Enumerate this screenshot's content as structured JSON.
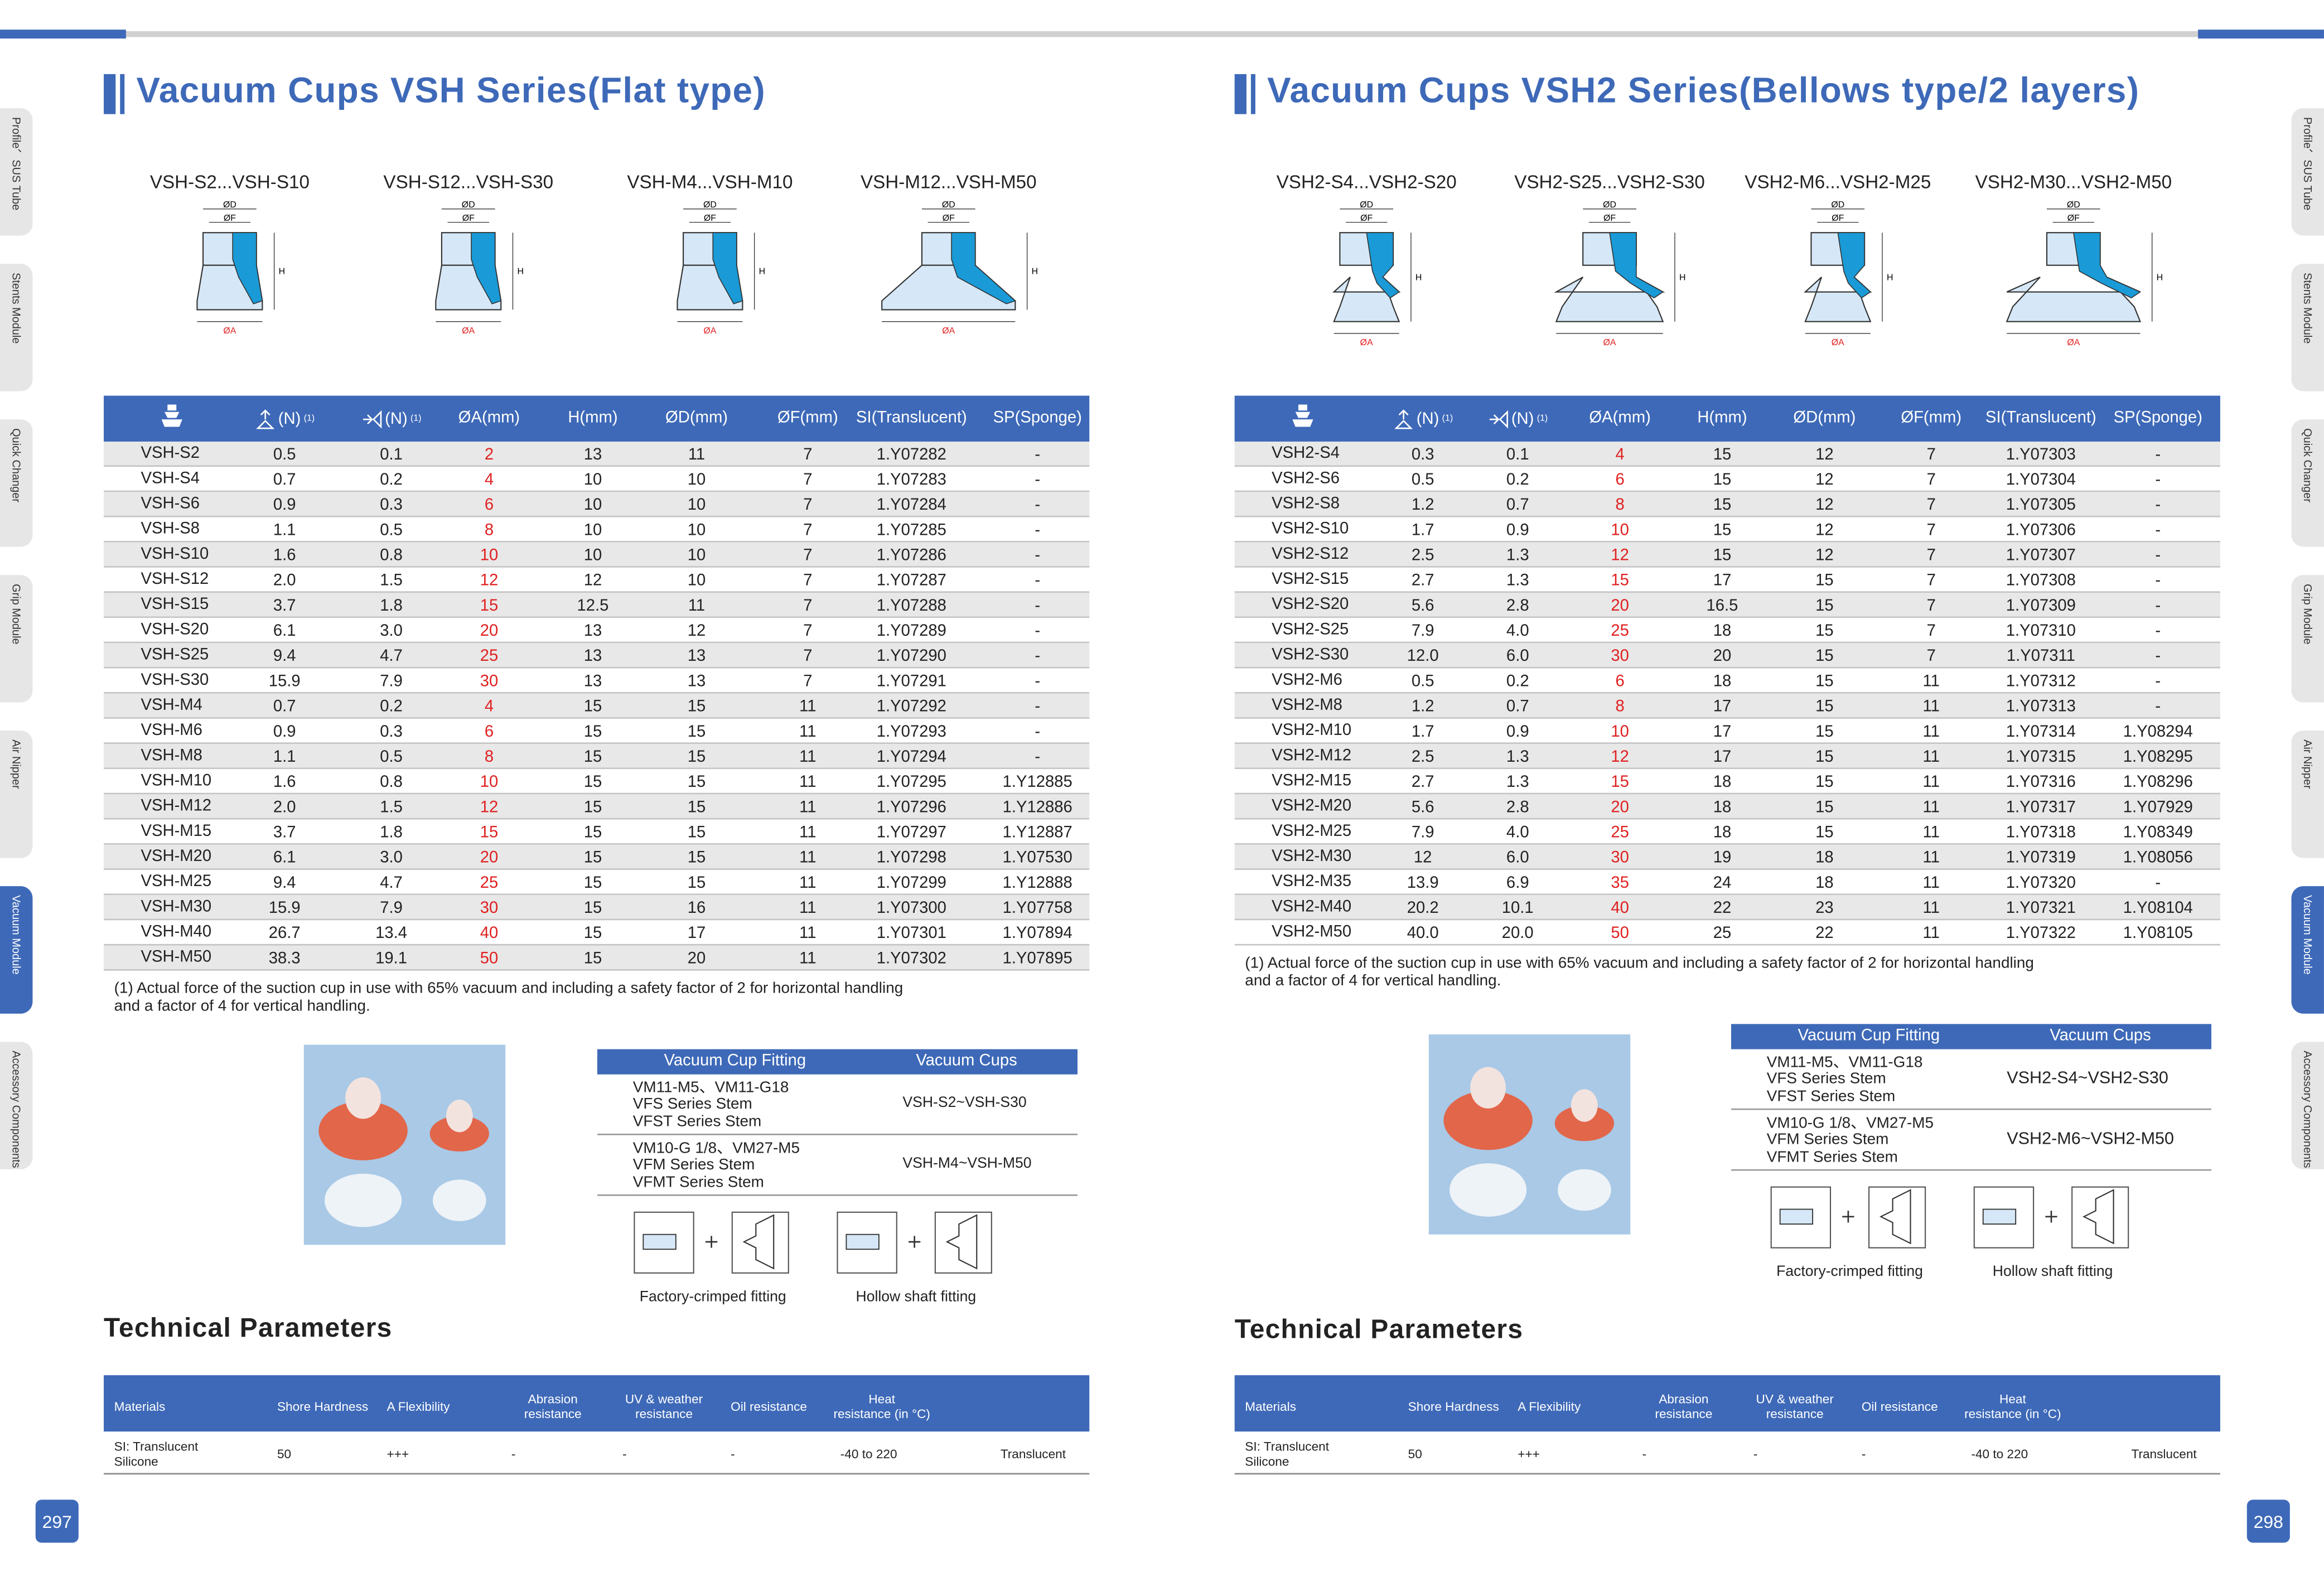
{
  "side_tabs": [
    "Profile、SUS Tube",
    "Stents Module",
    "Quick Changer",
    "Grip Module",
    "Air Nipper",
    "Vacuum Module",
    "Accessory Components"
  ],
  "pages": [
    {
      "page_number": "297",
      "title": "Vacuum Cups VSH Series(Flat type)",
      "diagrams": [
        "VSH-S2...VSH-S10",
        "VSH-S12...VSH-S30",
        "VSH-M4...VSH-M10",
        "VSH-M12...VSH-M50"
      ],
      "diagram_labels": {
        "d": "ØD",
        "f": "ØF",
        "h": "H",
        "a": "ØA"
      },
      "spec_table": {
        "header": [
          {
            "unit": "(N)",
            "note": "(1)"
          },
          {
            "unit": "(N)",
            "note": "(1)"
          },
          "ØA(mm)",
          "H(mm)",
          "ØD(mm)",
          "ØF(mm)",
          "SI(Translucent)",
          "SP(Sponge)"
        ],
        "rows": [
          [
            "VSH-S2",
            "0.5",
            "0.1",
            "2",
            "13",
            "11",
            "7",
            "1.Y07282",
            "-"
          ],
          [
            "VSH-S4",
            "0.7",
            "0.2",
            "4",
            "10",
            "10",
            "7",
            "1.Y07283",
            "-"
          ],
          [
            "VSH-S6",
            "0.9",
            "0.3",
            "6",
            "10",
            "10",
            "7",
            "1.Y07284",
            "-"
          ],
          [
            "VSH-S8",
            "1.1",
            "0.5",
            "8",
            "10",
            "10",
            "7",
            "1.Y07285",
            "-"
          ],
          [
            "VSH-S10",
            "1.6",
            "0.8",
            "10",
            "10",
            "10",
            "7",
            "1.Y07286",
            "-"
          ],
          [
            "VSH-S12",
            "2.0",
            "1.5",
            "12",
            "12",
            "10",
            "7",
            "1.Y07287",
            "-"
          ],
          [
            "VSH-S15",
            "3.7",
            "1.8",
            "15",
            "12.5",
            "11",
            "7",
            "1.Y07288",
            "-"
          ],
          [
            "VSH-S20",
            "6.1",
            "3.0",
            "20",
            "13",
            "12",
            "7",
            "1.Y07289",
            "-"
          ],
          [
            "VSH-S25",
            "9.4",
            "4.7",
            "25",
            "13",
            "13",
            "7",
            "1.Y07290",
            "-"
          ],
          [
            "VSH-S30",
            "15.9",
            "7.9",
            "30",
            "13",
            "13",
            "7",
            "1.Y07291",
            "-"
          ],
          [
            "VSH-M4",
            "0.7",
            "0.2",
            "4",
            "15",
            "15",
            "11",
            "1.Y07292",
            "-"
          ],
          [
            "VSH-M6",
            "0.9",
            "0.3",
            "6",
            "15",
            "15",
            "11",
            "1.Y07293",
            "-"
          ],
          [
            "VSH-M8",
            "1.1",
            "0.5",
            "8",
            "15",
            "15",
            "11",
            "1.Y07294",
            "-"
          ],
          [
            "VSH-M10",
            "1.6",
            "0.8",
            "10",
            "15",
            "15",
            "11",
            "1.Y07295",
            "1.Y12885"
          ],
          [
            "VSH-M12",
            "2.0",
            "1.5",
            "12",
            "15",
            "15",
            "11",
            "1.Y07296",
            "1.Y12886"
          ],
          [
            "VSH-M15",
            "3.7",
            "1.8",
            "15",
            "15",
            "15",
            "11",
            "1.Y07297",
            "1.Y12887"
          ],
          [
            "VSH-M20",
            "6.1",
            "3.0",
            "20",
            "15",
            "15",
            "11",
            "1.Y07298",
            "1.Y07530"
          ],
          [
            "VSH-M25",
            "9.4",
            "4.7",
            "25",
            "15",
            "15",
            "11",
            "1.Y07299",
            "1.Y12888"
          ],
          [
            "VSH-M30",
            "15.9",
            "7.9",
            "30",
            "15",
            "16",
            "11",
            "1.Y07300",
            "1.Y07758"
          ],
          [
            "VSH-M40",
            "26.7",
            "13.4",
            "40",
            "15",
            "17",
            "11",
            "1.Y07301",
            "1.Y07894"
          ],
          [
            "VSH-M50",
            "38.3",
            "19.1",
            "50",
            "15",
            "20",
            "11",
            "1.Y07302",
            "1.Y07895"
          ]
        ]
      },
      "footnote": [
        "(1) Actual force of the suction cup in use with 65% vacuum and including a safety factor of 2 for horizontal handling",
        "and a factor of 4 for vertical handling."
      ],
      "fitting_table": {
        "header": [
          "Vacuum Cup  Fitting",
          "Vacuum Cups"
        ],
        "rows": [
          {
            "fittings": [
              "VM11-M5、VM11-G18",
              "VFS Series Stem",
              "VFST Series Stem"
            ],
            "cups": "VSH-S2~VSH-S30"
          },
          {
            "fittings": [
              "VM10-G 1/8、VM27-M5",
              "VFM Series Stem",
              "VFMT Series Stem"
            ],
            "cups": "VSH-M4~VSH-M50"
          }
        ]
      },
      "fitting_captions": [
        "Factory-crimped fitting",
        "Hollow shaft fitting"
      ],
      "tech_title": "Technical Parameters",
      "tech_table": {
        "header": [
          [
            "Materials"
          ],
          [
            "Shore Hardness"
          ],
          [
            "A Flexibility"
          ],
          [
            "Abrasion",
            "resistance"
          ],
          [
            "UV & weather",
            "resistance"
          ],
          [
            "Oil resistance"
          ],
          [
            "Heat",
            "resistance (in °C)"
          ]
        ],
        "rows": [
          [
            [
              "SI: Translucent",
              "Silicone"
            ],
            [
              "50"
            ],
            [
              "+++"
            ],
            [
              "-"
            ],
            [
              "-"
            ],
            [
              "-"
            ],
            [
              "-40 to 220"
            ],
            [
              "Translucent"
            ]
          ]
        ]
      }
    },
    {
      "page_number": "298",
      "title": "Vacuum Cups VSH2 Series(Bellows type/2 layers)",
      "diagrams": [
        "VSH2-S4...VSH2-S20",
        "VSH2-S25...VSH2-S30",
        "VSH2-M6...VSH2-M25",
        "VSH2-M30...VSH2-M50"
      ],
      "diagram_labels": {
        "d": "ØD",
        "f": "ØF",
        "h": "H",
        "a": "ØA"
      },
      "spec_table": {
        "header": [
          {
            "unit": "(N)",
            "note": "(1)"
          },
          {
            "unit": "(N)",
            "note": "(1)"
          },
          "ØA(mm)",
          "H(mm)",
          "ØD(mm)",
          "ØF(mm)",
          "SI(Translucent)",
          "SP(Sponge)"
        ],
        "rows": [
          [
            "VSH2-S4",
            "0.3",
            "0.1",
            "4",
            "15",
            "12",
            "7",
            "1.Y07303",
            "-"
          ],
          [
            "VSH2-S6",
            "0.5",
            "0.2",
            "6",
            "15",
            "12",
            "7",
            "1.Y07304",
            "-"
          ],
          [
            "VSH2-S8",
            "1.2",
            "0.7",
            "8",
            "15",
            "12",
            "7",
            "1.Y07305",
            "-"
          ],
          [
            "VSH2-S10",
            "1.7",
            "0.9",
            "10",
            "15",
            "12",
            "7",
            "1.Y07306",
            "-"
          ],
          [
            "VSH2-S12",
            "2.5",
            "1.3",
            "12",
            "15",
            "12",
            "7",
            "1.Y07307",
            "-"
          ],
          [
            "VSH2-S15",
            "2.7",
            "1.3",
            "15",
            "17",
            "15",
            "7",
            "1.Y07308",
            "-"
          ],
          [
            "VSH2-S20",
            "5.6",
            "2.8",
            "20",
            "16.5",
            "15",
            "7",
            "1.Y07309",
            "-"
          ],
          [
            "VSH2-S25",
            "7.9",
            "4.0",
            "25",
            "18",
            "15",
            "7",
            "1.Y07310",
            "-"
          ],
          [
            "VSH2-S30",
            "12.0",
            "6.0",
            "30",
            "20",
            "15",
            "7",
            "1.Y07311",
            "-"
          ],
          [
            "VSH2-M6",
            "0.5",
            "0.2",
            "6",
            "18",
            "15",
            "11",
            "1.Y07312",
            "-"
          ],
          [
            "VSH2-M8",
            "1.2",
            "0.7",
            "8",
            "17",
            "15",
            "11",
            "1.Y07313",
            "-"
          ],
          [
            "VSH2-M10",
            "1.7",
            "0.9",
            "10",
            "17",
            "15",
            "11",
            "1.Y07314",
            "1.Y08294"
          ],
          [
            "VSH2-M12",
            "2.5",
            "1.3",
            "12",
            "17",
            "15",
            "11",
            "1.Y07315",
            "1.Y08295"
          ],
          [
            "VSH2-M15",
            "2.7",
            "1.3",
            "15",
            "18",
            "15",
            "11",
            "1.Y07316",
            "1.Y08296"
          ],
          [
            "VSH2-M20",
            "5.6",
            "2.8",
            "20",
            "18",
            "15",
            "11",
            "1.Y07317",
            "1.Y07929"
          ],
          [
            "VSH2-M25",
            "7.9",
            "4.0",
            "25",
            "18",
            "15",
            "11",
            "1.Y07318",
            "1.Y08349"
          ],
          [
            "VSH2-M30",
            "12",
            "6.0",
            "30",
            "19",
            "18",
            "11",
            "1.Y07319",
            "1.Y08056"
          ],
          [
            "VSH2-M35",
            "13.9",
            "6.9",
            "35",
            "24",
            "18",
            "11",
            "1.Y07320",
            "-"
          ],
          [
            "VSH2-M40",
            "20.2",
            "10.1",
            "40",
            "22",
            "23",
            "11",
            "1.Y07321",
            "1.Y08104"
          ],
          [
            "VSH2-M50",
            "40.0",
            "20.0",
            "50",
            "25",
            "22",
            "11",
            "1.Y07322",
            "1.Y08105"
          ]
        ]
      },
      "footnote": [
        "(1) Actual force of the suction cup in use with 65% vacuum and including a safety factor of 2 for horizontal handling",
        "and a factor of 4 for vertical handling."
      ],
      "fitting_table": {
        "header": [
          "Vacuum Cup  Fitting",
          "Vacuum Cups"
        ],
        "rows": [
          {
            "fittings": [
              "VM11-M5、VM11-G18",
              "VFS Series Stem",
              "VFST Series Stem"
            ],
            "cups": "VSH2-S4~VSH2-S30"
          },
          {
            "fittings": [
              "VM10-G 1/8、VM27-M5",
              "VFM Series Stem",
              "VFMT Series Stem"
            ],
            "cups": "VSH2-M6~VSH2-M50"
          }
        ]
      },
      "fitting_captions": [
        "Factory-crimped fitting",
        "Hollow shaft fitting"
      ],
      "tech_title": "Technical Parameters",
      "tech_table": {
        "header": [
          [
            "Materials"
          ],
          [
            "Shore Hardness"
          ],
          [
            "A Flexibility"
          ],
          [
            "Abrasion",
            "resistance"
          ],
          [
            "UV & weather",
            "resistance"
          ],
          [
            "Oil resistance"
          ],
          [
            "Heat",
            "resistance (in °C)"
          ]
        ],
        "rows": [
          [
            [
              "SI: Translucent",
              "Silicone"
            ],
            [
              "50"
            ],
            [
              "+++"
            ],
            [
              "-"
            ],
            [
              "-"
            ],
            [
              "-"
            ],
            [
              "-40 to 220"
            ],
            [
              "Translucent"
            ]
          ]
        ]
      }
    }
  ]
}
